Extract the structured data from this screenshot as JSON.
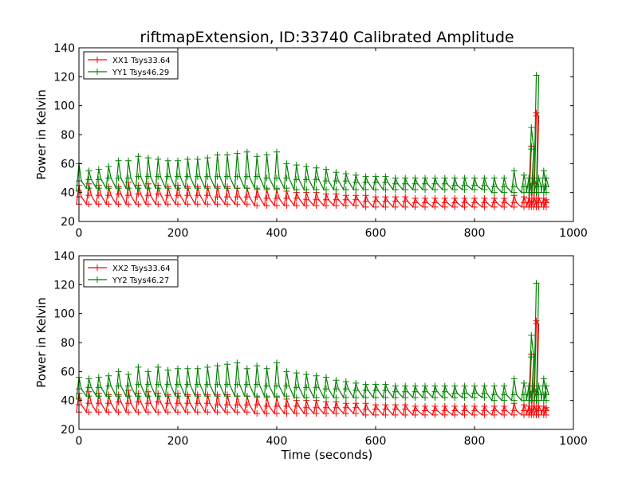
{
  "chart_data": {
    "title": "riftmapExtension, ID:33740 Calibrated Amplitude",
    "colors": {
      "xx": "#ff0000",
      "yy": "#008000"
    },
    "panels": [
      {
        "type": "line",
        "marker": "+",
        "xlabel": "",
        "ylabel": "Power in Kelvin",
        "xlim": [
          0,
          1000
        ],
        "ylim": [
          20,
          140
        ],
        "xticks": [
          0,
          200,
          400,
          600,
          800,
          1000
        ],
        "yticks": [
          20,
          40,
          60,
          80,
          100,
          120,
          140
        ],
        "legend_position": "upper-left",
        "grid": false,
        "series": [
          {
            "name": "XX1 Tsys33.64",
            "color": "#ff0000",
            "x": [
              0,
              20,
              40,
              60,
              80,
              100,
              120,
              140,
              160,
              180,
              200,
              220,
              240,
              260,
              280,
              300,
              320,
              340,
              360,
              380,
              400,
              420,
              440,
              460,
              480,
              500,
              520,
              540,
              560,
              580,
              600,
              620,
              640,
              660,
              680,
              700,
              720,
              740,
              760,
              780,
              800,
              820,
              840,
              860,
              880,
              900,
              910,
              915,
              920,
              925,
              930,
              940,
              945
            ],
            "y": [
              37,
              38,
              38,
              38,
              39,
              38,
              39,
              38,
              39,
              38,
              38,
              38,
              38,
              38,
              37,
              37,
              37,
              37,
              37,
              36,
              36,
              36,
              36,
              35,
              35,
              35,
              35,
              35,
              35,
              34,
              34,
              34,
              34,
              34,
              33,
              33,
              33,
              33,
              33,
              33,
              33,
              33,
              33,
              33,
              33,
              33,
              33,
              72,
              34,
              93,
              33,
              33,
              33
            ],
            "peaks": [
              45,
              46,
              45,
              44,
              44,
              47,
              45,
              46,
              45,
              44,
              45,
              44,
              44,
              44,
              44,
              44,
              43,
              43,
              42,
              42,
              42,
              41,
              40,
              40,
              40,
              39,
              39,
              38,
              38,
              38,
              37,
              37,
              37,
              37,
              36,
              36,
              36,
              36,
              36,
              36,
              36,
              36,
              36,
              36,
              38,
              37,
              36,
              72,
              36,
              95,
              36,
              36,
              35
            ],
            "dips": [
              32,
              32,
              32,
              32,
              32,
              32,
              32,
              32,
              32,
              32,
              32,
              32,
              32,
              32,
              32,
              32,
              32,
              32,
              31,
              31,
              31,
              31,
              31,
              31,
              31,
              31,
              31,
              31,
              31,
              30,
              30,
              30,
              30,
              30,
              30,
              30,
              30,
              30,
              30,
              30,
              30,
              30,
              30,
              30,
              30,
              30,
              30,
              30,
              30,
              30,
              30,
              30,
              30
            ]
          },
          {
            "name": "YY1 Tsys46.29",
            "color": "#008000",
            "x": [
              0,
              20,
              40,
              60,
              80,
              100,
              120,
              140,
              160,
              180,
              200,
              220,
              240,
              260,
              280,
              300,
              320,
              340,
              360,
              380,
              400,
              420,
              440,
              460,
              480,
              500,
              520,
              540,
              560,
              580,
              600,
              620,
              640,
              660,
              680,
              700,
              720,
              740,
              760,
              780,
              800,
              820,
              840,
              860,
              880,
              900,
              910,
              915,
              920,
              925,
              930,
              940,
              945
            ],
            "y": [
              48,
              49,
              49,
              50,
              50,
              50,
              51,
              51,
              51,
              51,
              51,
              51,
              51,
              51,
              51,
              51,
              51,
              51,
              51,
              50,
              50,
              50,
              49,
              49,
              49,
              48,
              48,
              48,
              47,
              47,
              47,
              47,
              46,
              46,
              46,
              46,
              46,
              46,
              45,
              45,
              45,
              45,
              44,
              44,
              44,
              44,
              44,
              70,
              46,
              121,
              44,
              44,
              44
            ],
            "peaks": [
              60,
              55,
              56,
              58,
              62,
              62,
              65,
              64,
              63,
              62,
              62,
              63,
              63,
              64,
              66,
              66,
              67,
              68,
              65,
              66,
              68,
              60,
              59,
              58,
              57,
              56,
              54,
              53,
              52,
              51,
              51,
              51,
              50,
              50,
              50,
              50,
              50,
              50,
              50,
              50,
              50,
              50,
              50,
              50,
              55,
              52,
              50,
              85,
              50,
              121,
              50,
              55,
              50
            ],
            "dips": [
              41,
              43,
              43,
              43,
              43,
              43,
              43,
              43,
              43,
              43,
              43,
              43,
              43,
              43,
              43,
              43,
              43,
              43,
              43,
              43,
              43,
              43,
              42,
              42,
              42,
              42,
              42,
              42,
              42,
              42,
              42,
              42,
              42,
              42,
              42,
              42,
              42,
              42,
              42,
              42,
              42,
              42,
              40,
              40,
              40,
              40,
              40,
              40,
              40,
              40,
              40,
              40,
              40
            ]
          }
        ]
      },
      {
        "type": "line",
        "marker": "+",
        "xlabel": "Time (seconds)",
        "ylabel": "Power in Kelvin",
        "xlim": [
          0,
          1000
        ],
        "ylim": [
          20,
          140
        ],
        "xticks": [
          0,
          200,
          400,
          600,
          800,
          1000
        ],
        "yticks": [
          20,
          40,
          60,
          80,
          100,
          120,
          140
        ],
        "legend_position": "upper-left",
        "grid": false,
        "series": [
          {
            "name": "XX2 Tsys33.64",
            "color": "#ff0000",
            "x": [
              0,
              20,
              40,
              60,
              80,
              100,
              120,
              140,
              160,
              180,
              200,
              220,
              240,
              260,
              280,
              300,
              320,
              340,
              360,
              380,
              400,
              420,
              440,
              460,
              480,
              500,
              520,
              540,
              560,
              580,
              600,
              620,
              640,
              660,
              680,
              700,
              720,
              740,
              760,
              780,
              800,
              820,
              840,
              860,
              880,
              900,
              910,
              915,
              920,
              925,
              930,
              940,
              945
            ],
            "y": [
              37,
              38,
              38,
              38,
              39,
              38,
              39,
              38,
              39,
              38,
              38,
              38,
              38,
              38,
              37,
              37,
              37,
              37,
              37,
              36,
              36,
              36,
              36,
              35,
              35,
              35,
              35,
              35,
              35,
              34,
              34,
              34,
              34,
              34,
              33,
              33,
              33,
              33,
              33,
              33,
              33,
              33,
              33,
              33,
              33,
              33,
              33,
              72,
              34,
              93,
              33,
              33,
              33
            ],
            "peaks": [
              45,
              46,
              45,
              44,
              44,
              47,
              45,
              46,
              45,
              44,
              45,
              44,
              44,
              44,
              44,
              44,
              43,
              43,
              42,
              42,
              42,
              41,
              40,
              40,
              40,
              39,
              39,
              38,
              38,
              38,
              37,
              37,
              37,
              37,
              36,
              36,
              36,
              36,
              36,
              36,
              36,
              36,
              36,
              36,
              38,
              37,
              36,
              72,
              36,
              95,
              36,
              36,
              35
            ],
            "dips": [
              32,
              32,
              32,
              32,
              32,
              32,
              32,
              32,
              32,
              32,
              32,
              32,
              32,
              32,
              32,
              32,
              32,
              32,
              31,
              31,
              31,
              31,
              31,
              31,
              31,
              31,
              31,
              31,
              31,
              30,
              30,
              30,
              30,
              30,
              30,
              30,
              30,
              30,
              30,
              30,
              30,
              30,
              30,
              30,
              30,
              30,
              30,
              30,
              30,
              30,
              30,
              30,
              30
            ]
          },
          {
            "name": "YY2 Tsys46.27",
            "color": "#008000",
            "x": [
              0,
              20,
              40,
              60,
              80,
              100,
              120,
              140,
              160,
              180,
              200,
              220,
              240,
              260,
              280,
              300,
              320,
              340,
              360,
              380,
              400,
              420,
              440,
              460,
              480,
              500,
              520,
              540,
              560,
              580,
              600,
              620,
              640,
              660,
              680,
              700,
              720,
              740,
              760,
              780,
              800,
              820,
              840,
              860,
              880,
              900,
              910,
              915,
              920,
              925,
              930,
              940,
              945
            ],
            "y": [
              48,
              49,
              49,
              50,
              50,
              50,
              51,
              51,
              51,
              51,
              51,
              51,
              51,
              51,
              51,
              51,
              51,
              51,
              51,
              50,
              50,
              50,
              49,
              49,
              49,
              48,
              48,
              48,
              47,
              47,
              47,
              47,
              46,
              46,
              46,
              46,
              46,
              46,
              45,
              45,
              45,
              45,
              44,
              44,
              44,
              44,
              44,
              70,
              46,
              121,
              44,
              44,
              44
            ],
            "peaks": [
              56,
              55,
              56,
              57,
              60,
              58,
              63,
              60,
              63,
              61,
              62,
              62,
              62,
              63,
              64,
              65,
              66,
              62,
              64,
              62,
              66,
              60,
              59,
              58,
              57,
              56,
              54,
              53,
              52,
              51,
              51,
              51,
              50,
              50,
              50,
              50,
              50,
              50,
              50,
              50,
              50,
              50,
              50,
              50,
              55,
              52,
              50,
              85,
              50,
              121,
              50,
              55,
              50
            ],
            "dips": [
              41,
              43,
              43,
              43,
              43,
              43,
              43,
              43,
              43,
              43,
              43,
              43,
              43,
              43,
              43,
              43,
              43,
              43,
              43,
              43,
              43,
              43,
              42,
              42,
              42,
              42,
              42,
              42,
              42,
              42,
              42,
              42,
              42,
              42,
              42,
              42,
              42,
              42,
              42,
              42,
              42,
              42,
              40,
              40,
              40,
              40,
              40,
              40,
              40,
              40,
              40,
              40,
              40
            ]
          }
        ]
      }
    ]
  }
}
